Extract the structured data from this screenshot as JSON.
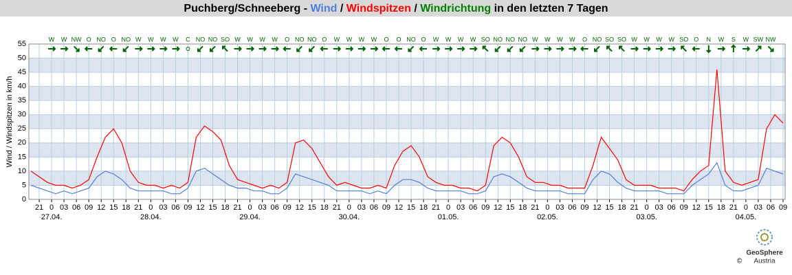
{
  "chart_data": {
    "type": "line",
    "title_prefix": "Puchberg/Schneeberg -",
    "separator": "/",
    "direction_name": "Windrichtung",
    "title_suffix": "in den letzten 7 Tagen",
    "y_label": "Wind / Windspitzen in km/h",
    "x": [
      -5,
      -3,
      -1,
      1,
      3,
      5,
      7,
      9,
      11,
      13,
      15,
      17,
      19,
      21,
      23,
      25,
      27,
      29,
      31,
      33,
      35,
      37,
      39,
      41,
      43,
      45,
      47,
      49,
      51,
      53,
      55,
      57,
      59,
      61,
      63,
      65,
      67,
      69,
      71,
      73,
      75,
      77,
      79,
      81,
      83,
      85,
      87,
      89,
      91,
      93,
      95,
      97,
      99,
      101,
      103,
      105,
      107,
      109,
      111,
      113,
      115,
      117,
      119,
      121,
      123,
      125,
      127,
      129,
      131,
      133,
      135,
      137,
      139,
      141,
      143,
      145,
      147,
      149,
      151,
      153,
      155,
      157,
      159,
      161,
      163,
      165,
      167,
      169,
      171,
      173,
      175,
      177
    ],
    "series": [
      {
        "name": "Wind",
        "color": "#4f7fdc",
        "values": [
          5,
          4,
          3,
          2,
          3,
          2,
          3,
          4,
          8,
          10,
          9,
          7,
          4,
          3,
          3,
          3,
          3,
          2,
          2,
          4,
          10,
          11,
          9,
          7,
          5,
          4,
          4,
          3,
          3,
          2,
          2,
          4,
          9,
          8,
          7,
          6,
          5,
          3,
          3,
          3,
          3,
          2,
          3,
          2,
          5,
          7,
          7,
          6,
          4,
          3,
          3,
          3,
          3,
          2,
          2,
          3,
          8,
          9,
          8,
          6,
          4,
          3,
          3,
          3,
          3,
          2,
          2,
          2,
          7,
          10,
          9,
          6,
          4,
          3,
          3,
          3,
          3,
          2,
          2,
          2,
          5,
          7,
          9,
          13,
          5,
          3,
          3,
          4,
          5,
          11,
          10,
          9
        ]
      },
      {
        "name": "Windspitzen",
        "color": "#ff0000",
        "values": [
          10,
          8,
          6,
          5,
          5,
          4,
          5,
          7,
          15,
          22,
          25,
          20,
          10,
          6,
          5,
          5,
          4,
          5,
          4,
          6,
          22,
          26,
          24,
          21,
          12,
          7,
          6,
          5,
          4,
          5,
          4,
          6,
          20,
          21,
          18,
          13,
          8,
          5,
          6,
          5,
          4,
          4,
          5,
          4,
          12,
          17,
          19,
          15,
          8,
          6,
          5,
          5,
          4,
          4,
          3,
          5,
          19,
          22,
          20,
          15,
          8,
          6,
          6,
          5,
          5,
          4,
          4,
          4,
          12,
          22,
          18,
          14,
          7,
          5,
          5,
          5,
          4,
          4,
          4,
          3,
          7,
          10,
          12,
          46,
          10,
          6,
          5,
          6,
          7,
          25,
          30,
          27
        ]
      }
    ],
    "xlim": [
      -5.5,
      177.5
    ],
    "xticks": [
      {
        "value": -3,
        "label": "21"
      },
      0,
      {
        "value": 3,
        "label": "03"
      },
      {
        "value": 6,
        "label": "06"
      },
      {
        "value": 9,
        "label": "09"
      },
      {
        "value": 12,
        "label": "12"
      },
      {
        "value": 15,
        "label": "15"
      },
      {
        "value": 18,
        "label": "18"
      },
      {
        "value": 21,
        "label": "21"
      },
      {
        "value": 24,
        "label": "0"
      },
      {
        "value": 27,
        "label": "03"
      },
      {
        "value": 30,
        "label": "06"
      },
      {
        "value": 33,
        "label": "09"
      },
      {
        "value": 36,
        "label": "12"
      },
      {
        "value": 39,
        "label": "15"
      },
      {
        "value": 42,
        "label": "18"
      },
      {
        "value": 45,
        "label": "21"
      },
      {
        "value": 48,
        "label": "0"
      },
      {
        "value": 51,
        "label": "03"
      },
      {
        "value": 54,
        "label": "06"
      },
      {
        "value": 57,
        "label": "09"
      },
      {
        "value": 60,
        "label": "12"
      },
      {
        "value": 63,
        "label": "15"
      },
      {
        "value": 66,
        "label": "18"
      },
      {
        "value": 69,
        "label": "21"
      },
      {
        "value": 72,
        "label": "0"
      },
      {
        "value": 75,
        "label": "03"
      },
      {
        "value": 78,
        "label": "06"
      },
      {
        "value": 81,
        "label": "09"
      },
      {
        "value": 84,
        "label": "12"
      },
      {
        "value": 87,
        "label": "15"
      },
      {
        "value": 90,
        "label": "18"
      },
      {
        "value": 93,
        "label": "21"
      },
      {
        "value": 96,
        "label": "0"
      },
      {
        "value": 99,
        "label": "03"
      },
      {
        "value": 102,
        "label": "06"
      },
      {
        "value": 105,
        "label": "09"
      },
      {
        "value": 108,
        "label": "12"
      },
      {
        "value": 111,
        "label": "15"
      },
      {
        "value": 114,
        "label": "18"
      },
      {
        "value": 117,
        "label": "21"
      },
      {
        "value": 120,
        "label": "0"
      },
      {
        "value": 123,
        "label": "03"
      },
      {
        "value": 126,
        "label": "06"
      },
      {
        "value": 129,
        "label": "09"
      },
      {
        "value": 132,
        "label": "12"
      },
      {
        "value": 135,
        "label": "15"
      },
      {
        "value": 138,
        "label": "18"
      },
      {
        "value": 141,
        "label": "21"
      },
      {
        "value": 144,
        "label": "0"
      },
      {
        "value": 147,
        "label": "03"
      },
      {
        "value": 150,
        "label": "06"
      },
      {
        "value": 153,
        "label": "09"
      },
      {
        "value": 156,
        "label": "12"
      },
      {
        "value": 159,
        "label": "15"
      },
      {
        "value": 162,
        "label": "18"
      },
      {
        "value": 165,
        "label": "21"
      },
      {
        "value": 168,
        "label": "0"
      },
      {
        "value": 171,
        "label": "03"
      },
      {
        "value": 174,
        "label": "06"
      },
      {
        "value": 177,
        "label": "09"
      }
    ],
    "date_labels": [
      {
        "value": 0,
        "label": "27.04."
      },
      {
        "value": 24,
        "label": "28.04."
      },
      {
        "value": 48,
        "label": "29.04."
      },
      {
        "value": 72,
        "label": "30.04."
      },
      {
        "value": 96,
        "label": "01.05."
      },
      {
        "value": 120,
        "label": "02.05."
      },
      {
        "value": 144,
        "label": "03.05."
      },
      {
        "value": 168,
        "label": "04.05."
      }
    ],
    "ylim": [
      0,
      55
    ],
    "yticks": [
      0,
      5,
      10,
      15,
      20,
      25,
      30,
      35,
      40,
      45,
      50,
      55
    ],
    "grid": true,
    "direction_color": "#006400",
    "wind_directions": {
      "x": [
        0,
        3,
        6,
        9,
        12,
        15,
        18,
        21,
        24,
        27,
        30,
        33,
        36,
        39,
        42,
        45,
        48,
        51,
        54,
        57,
        60,
        63,
        66,
        69,
        72,
        75,
        78,
        81,
        84,
        87,
        90,
        93,
        96,
        99,
        102,
        105,
        108,
        111,
        114,
        117,
        120,
        123,
        126,
        129,
        132,
        135,
        138,
        141,
        144,
        147,
        150,
        153,
        156,
        159,
        162,
        165,
        168,
        171,
        174
      ],
      "labels": [
        "W",
        "W",
        "NW",
        "O",
        "NO",
        "O",
        "NO",
        "W",
        "W",
        "W",
        "W",
        "C",
        "NO",
        "NO",
        "SO",
        "W",
        "W",
        "W",
        "W",
        "O",
        "NO",
        "NO",
        "O",
        "W",
        "W",
        "W",
        "W",
        "O",
        "O",
        "NO",
        "O",
        "W",
        "W",
        "W",
        "W",
        "SO",
        "NO",
        "NO",
        "NO",
        "W",
        "W",
        "W",
        "W",
        "O",
        "NO",
        "SO",
        "SO",
        "W",
        "W",
        "W",
        "W",
        "SO",
        "O",
        "N",
        "W",
        "S",
        "W",
        "SW",
        "NW"
      ]
    },
    "logo": {
      "name": "GeoSphere",
      "country": "Austria",
      "copyright": "©"
    }
  }
}
